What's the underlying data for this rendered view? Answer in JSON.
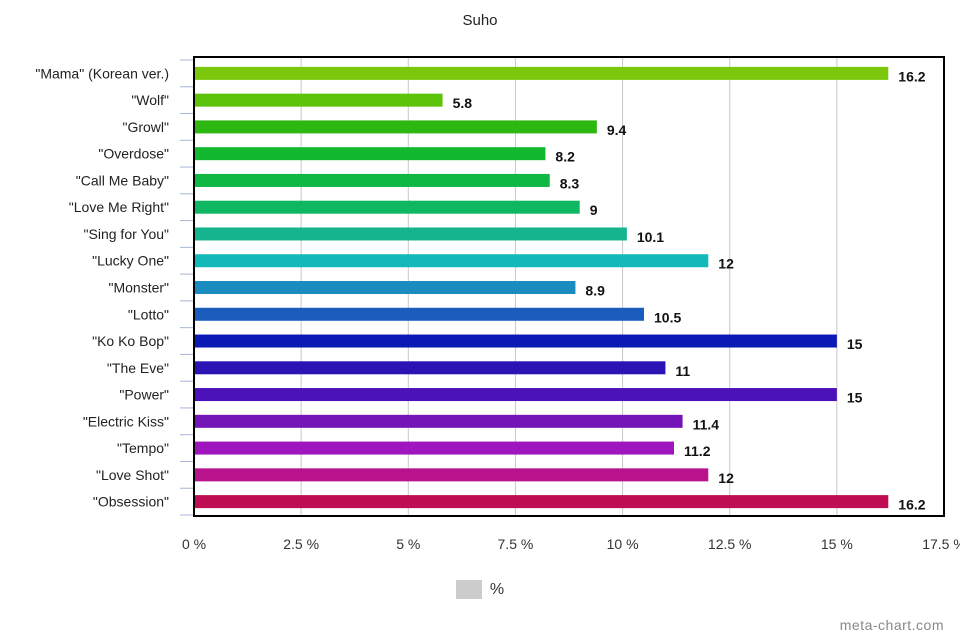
{
  "chart_data": {
    "type": "bar",
    "orientation": "horizontal",
    "title": "Suho",
    "categories": [
      "\"Mama\" (Korean ver.)",
      "\"Wolf\"",
      "\"Growl\"",
      "\"Overdose\"",
      "\"Call Me Baby\"",
      "\"Love Me Right\"",
      "\"Sing for You\"",
      "\"Lucky One\"",
      "\"Monster\"",
      "\"Lotto\"",
      "\"Ko Ko Bop\"",
      "\"The Eve\"",
      "\"Power\"",
      "\"Electric Kiss\"",
      "\"Tempo\"",
      "\"Love Shot\"",
      "\"Obsession\""
    ],
    "values": [
      16.2,
      5.8,
      9.4,
      8.2,
      8.3,
      9,
      10.1,
      12,
      8.9,
      10.5,
      15,
      11,
      15,
      11.4,
      11.2,
      12,
      16.2
    ],
    "value_labels": [
      "16.2",
      "5.8",
      "9.4",
      "8.2",
      "8.3",
      "9",
      "10.1",
      "12",
      "8.9",
      "10.5",
      "15",
      "11",
      "15",
      "11.4",
      "11.2",
      "12",
      "16.2"
    ],
    "colors": [
      "#7ac70c",
      "#5cc20a",
      "#2db711",
      "#12b82e",
      "#0fb842",
      "#10b762",
      "#14b48e",
      "#13b9b9",
      "#1b8cc0",
      "#1a5dbd",
      "#0c1ab5",
      "#2a13b5",
      "#4a12b8",
      "#7514b7",
      "#a016be",
      "#b8128d",
      "#bf0e53"
    ],
    "xlim": [
      0,
      17.5
    ],
    "x_ticks": [
      0,
      2.5,
      5,
      7.5,
      10,
      12.5,
      15,
      17.5
    ],
    "x_tick_labels": [
      "0 %",
      "2.5 %",
      "5 %",
      "7.5 %",
      "10 %",
      "12.5 %",
      "15 %",
      "17.5 %"
    ],
    "grid": true,
    "legend": {
      "label": "%",
      "color": "#cccccc",
      "position": "bottom"
    }
  },
  "watermark": "meta-chart.com"
}
